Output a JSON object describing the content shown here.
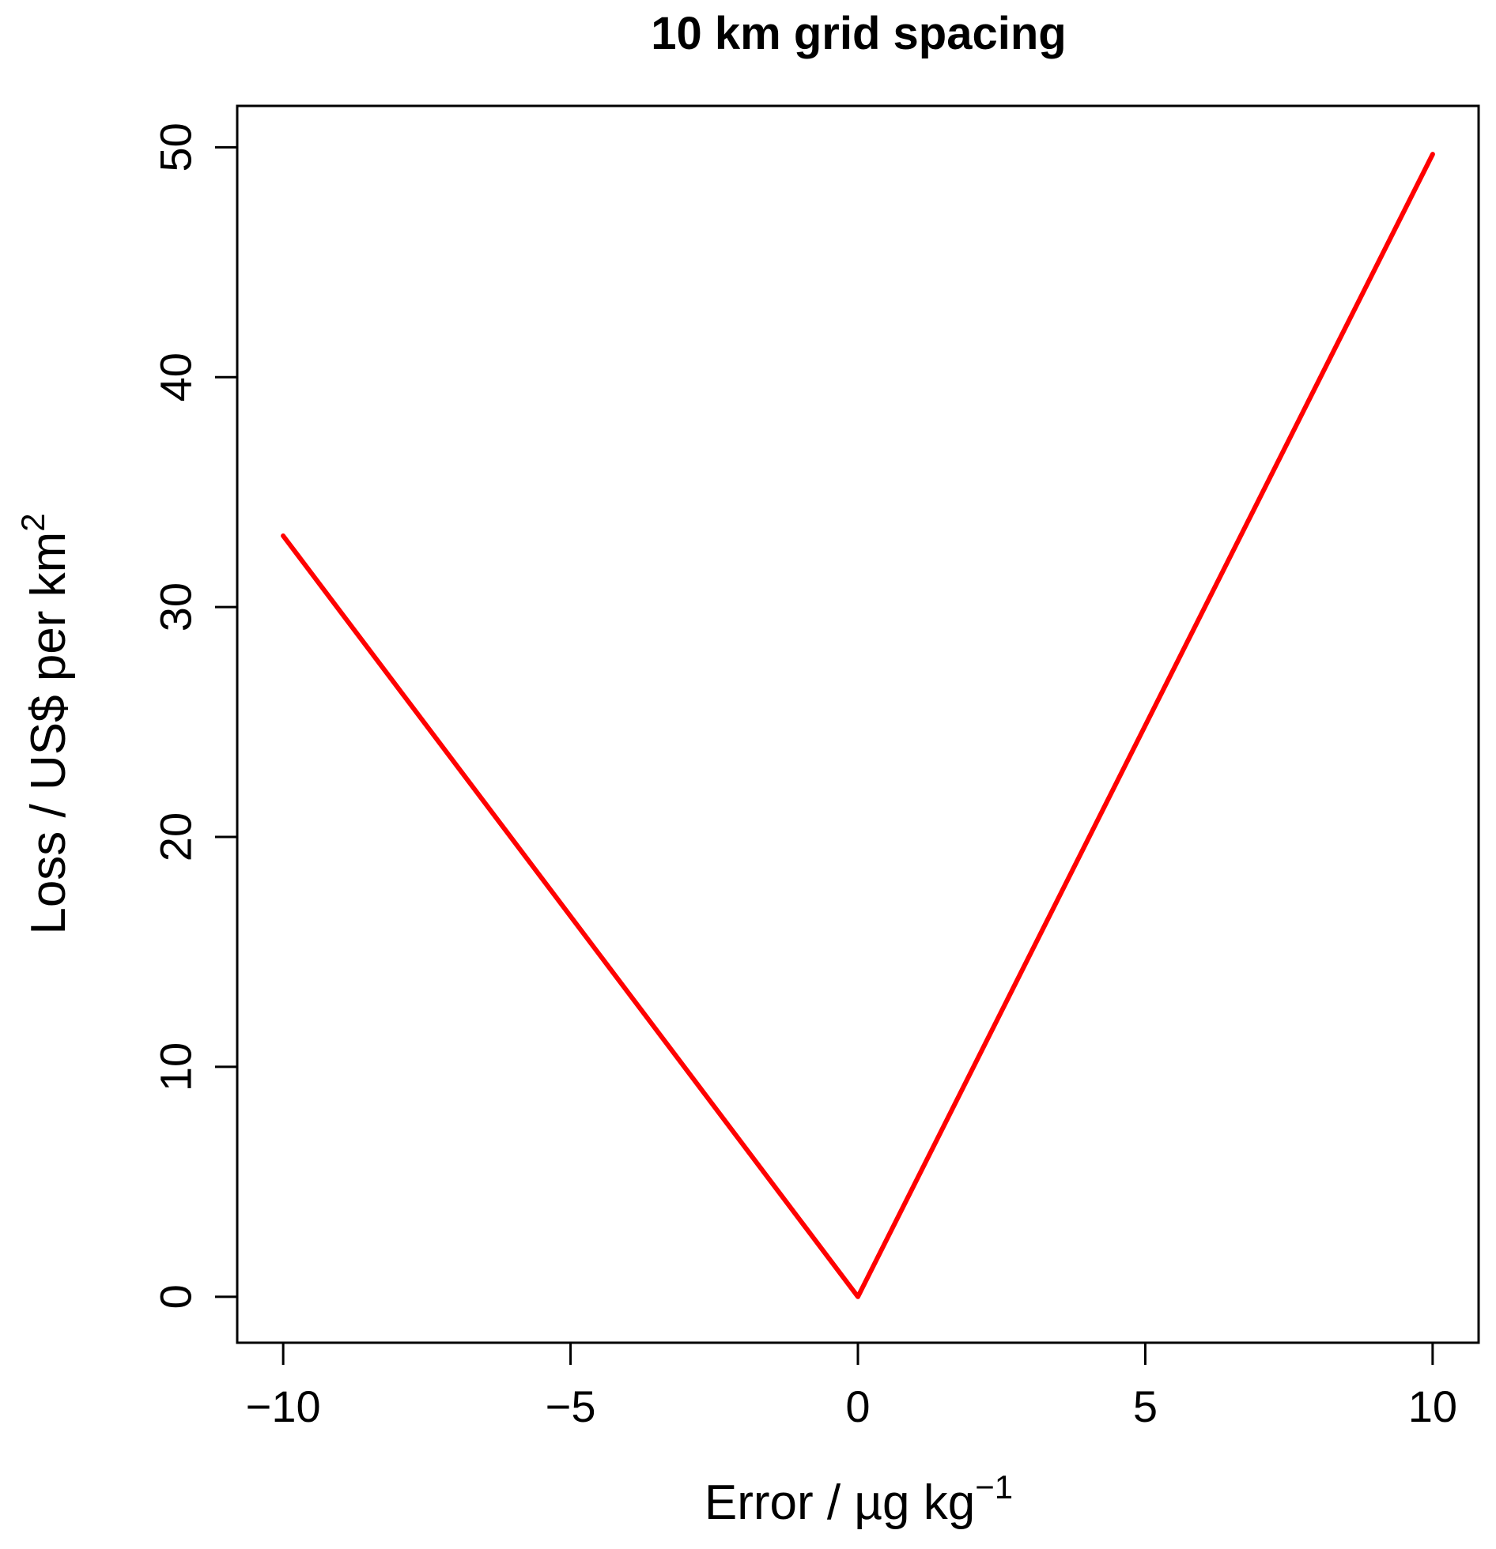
{
  "chart_data": {
    "type": "line",
    "title": "10 km grid spacing",
    "xlabel": "Error / µg kg",
    "xlabel_superscript": "−1",
    "ylabel": "Loss / US$ per km",
    "ylabel_superscript": "2",
    "xlim": [
      -10.8,
      10.8
    ],
    "ylim": [
      -2,
      51.8
    ],
    "x_ticks": [
      -10,
      -5,
      0,
      5,
      10
    ],
    "x_tick_labels": [
      "−10",
      "−5",
      "0",
      "5",
      "10"
    ],
    "y_ticks": [
      0,
      10,
      20,
      30,
      40,
      50
    ],
    "y_tick_labels": [
      "0",
      "10",
      "20",
      "30",
      "40",
      "50"
    ],
    "grid": false,
    "series": [
      {
        "color": "#ff0000",
        "x": [
          -10,
          0,
          10
        ],
        "y": [
          33.1,
          0,
          49.7
        ]
      }
    ]
  }
}
